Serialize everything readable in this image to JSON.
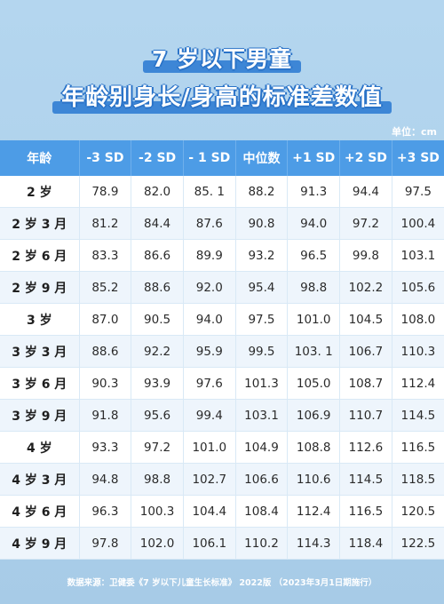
{
  "title": {
    "line1": "7 岁以下男童",
    "line2": "年龄别身长/身高的标准差数值"
  },
  "unit": "单位：cm",
  "table": {
    "headers": [
      "年龄",
      "-3 SD",
      "-2 SD",
      "- 1 SD",
      "中位数",
      "+1 SD",
      "+2 SD",
      "+3 SD"
    ],
    "rows": [
      {
        "age": "2 岁",
        "values": [
          "78.9",
          "82.0",
          "85. 1",
          "88.2",
          "91.3",
          "94.4",
          "97.5"
        ]
      },
      {
        "age": "2 岁 3 月",
        "values": [
          "81.2",
          "84.4",
          "87.6",
          "90.8",
          "94.0",
          "97.2",
          "100.4"
        ]
      },
      {
        "age": "2 岁 6 月",
        "values": [
          "83.3",
          "86.6",
          "89.9",
          "93.2",
          "96.5",
          "99.8",
          "103.1"
        ]
      },
      {
        "age": "2 岁 9 月",
        "values": [
          "85.2",
          "88.6",
          "92.0",
          "95.4",
          "98.8",
          "102.2",
          "105.6"
        ]
      },
      {
        "age": "3 岁",
        "values": [
          "87.0",
          "90.5",
          "94.0",
          "97.5",
          "101.0",
          "104.5",
          "108.0"
        ]
      },
      {
        "age": "3 岁 3 月",
        "values": [
          "88.6",
          "92.2",
          "95.9",
          "99.5",
          "103. 1",
          "106.7",
          "110.3"
        ]
      },
      {
        "age": "3 岁 6 月",
        "values": [
          "90.3",
          "93.9",
          "97.6",
          "101.3",
          "105.0",
          "108.7",
          "112.4"
        ]
      },
      {
        "age": "3 岁 9 月",
        "values": [
          "91.8",
          "95.6",
          "99.4",
          "103.1",
          "106.9",
          "110.7",
          "114.5"
        ]
      },
      {
        "age": "4 岁",
        "values": [
          "93.3",
          "97.2",
          "101.0",
          "104.9",
          "108.8",
          "112.6",
          "116.5"
        ]
      },
      {
        "age": "4 岁 3 月",
        "values": [
          "94.8",
          "98.8",
          "102.7",
          "106.6",
          "110.6",
          "114.5",
          "118.5"
        ]
      },
      {
        "age": "4 岁 6 月",
        "values": [
          "96.3",
          "100.3",
          "104.4",
          "108.4",
          "112.4",
          "116.5",
          "120.5"
        ]
      },
      {
        "age": "4 岁 9 月",
        "values": [
          "97.8",
          "102.0",
          "106.1",
          "110.2",
          "114.3",
          "118.4",
          "122.5"
        ]
      }
    ]
  },
  "footer": "数据来源：卫健委《7 岁以下儿童生长标准》 2022版 （2023年3月1日期施行）",
  "colors": {
    "background": "#a9cce8",
    "header_bg": "#4d9ce6",
    "title_highlight": "#3d86d6",
    "row_alt": "#eef5fc"
  }
}
